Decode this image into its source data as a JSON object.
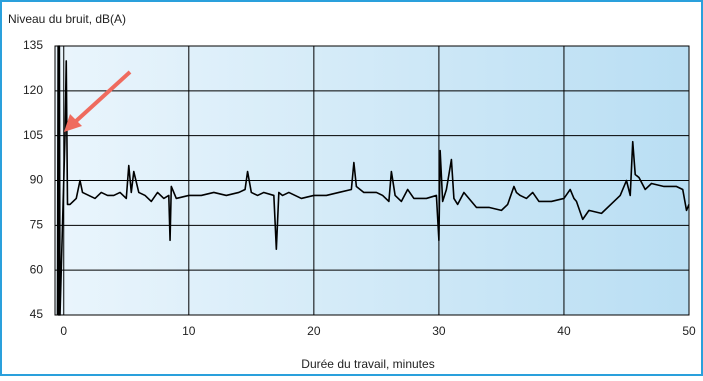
{
  "chart_data": {
    "type": "line",
    "ylabel": "Niveau du bruit, dB(A)",
    "xlabel": "Durée du travail, minutes",
    "xlim": [
      -0.7,
      50
    ],
    "ylim": [
      45,
      135
    ],
    "xticks": [
      0,
      10,
      20,
      30,
      40,
      50
    ],
    "yticks": [
      45,
      60,
      75,
      90,
      105,
      120,
      135
    ],
    "grid": true,
    "series": [
      {
        "color": "#000000",
        "x": [
          -0.5,
          -0.45,
          -0.4,
          -0.35,
          -0.3,
          0.1,
          0.2,
          0.3,
          0.5,
          1,
          1.3,
          1.5,
          2,
          2.5,
          3,
          3.5,
          4,
          4.5,
          5,
          5.2,
          5.4,
          5.6,
          6,
          6.5,
          7,
          7.5,
          8,
          8.4,
          8.5,
          8.6,
          9,
          10,
          11,
          12,
          13,
          14,
          14.5,
          14.7,
          15,
          15.5,
          16,
          16.8,
          17,
          17.2,
          17.5,
          18,
          19,
          20,
          21,
          22,
          23,
          23.2,
          23.4,
          24,
          25,
          25.5,
          26,
          26.2,
          26.5,
          27,
          27.5,
          28,
          29,
          29.8,
          30,
          30.1,
          30.3,
          30.6,
          31,
          31.2,
          31.5,
          32,
          33,
          34,
          35,
          35.5,
          36,
          36.2,
          36.5,
          37,
          37.5,
          38,
          39,
          40,
          40.5,
          40.8,
          41,
          41.5,
          42,
          43,
          44,
          44.5,
          45,
          45.3,
          45.5,
          45.7,
          46,
          46.5,
          47,
          48,
          49,
          49.5,
          49.8,
          50
        ],
        "values": [
          45,
          135,
          45,
          135,
          45,
          105,
          130,
          82,
          82,
          84,
          90,
          86,
          85,
          84,
          86,
          85,
          85,
          86,
          84,
          95,
          86,
          93,
          86,
          85,
          83,
          86,
          84,
          85,
          70,
          88,
          84,
          85,
          85,
          86,
          85,
          86,
          87,
          93,
          86,
          85,
          86,
          85,
          67,
          86,
          85,
          86,
          84,
          85,
          85,
          86,
          87,
          96,
          88,
          86,
          86,
          85,
          83,
          93,
          85,
          83,
          87,
          84,
          84,
          85,
          70,
          100,
          83,
          87,
          97,
          84,
          82,
          86,
          81,
          81,
          80,
          82,
          88,
          86,
          85,
          84,
          86,
          83,
          83,
          84,
          87,
          84,
          83,
          77,
          80,
          79,
          83,
          85,
          90,
          85,
          103,
          92,
          91,
          87,
          89,
          88,
          88,
          87,
          80,
          82
        ]
      }
    ]
  }
}
